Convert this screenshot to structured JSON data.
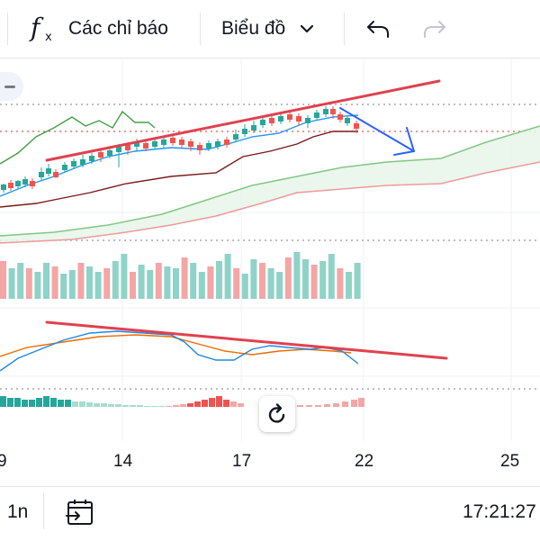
{
  "toolbar": {
    "indicators_label": "Các chỉ báo",
    "chart_type_label": "Biểu đồ"
  },
  "icons": {
    "fx": "function-icon",
    "dropdown": "chevron-down-icon",
    "undo": "undo-icon",
    "redo": "redo-icon",
    "reset": "refresh-icon",
    "calendar": "calendar-range-icon"
  },
  "colors": {
    "up": "#26a69a",
    "down": "#ef5350",
    "trendline": "#e0414f",
    "arrow": "#2962ff"
  },
  "x_axis_labels": [
    "9",
    "14",
    "17",
    "22",
    "25"
  ],
  "bottom": {
    "range_label": "1n",
    "clock": "17:21:27"
  }
}
